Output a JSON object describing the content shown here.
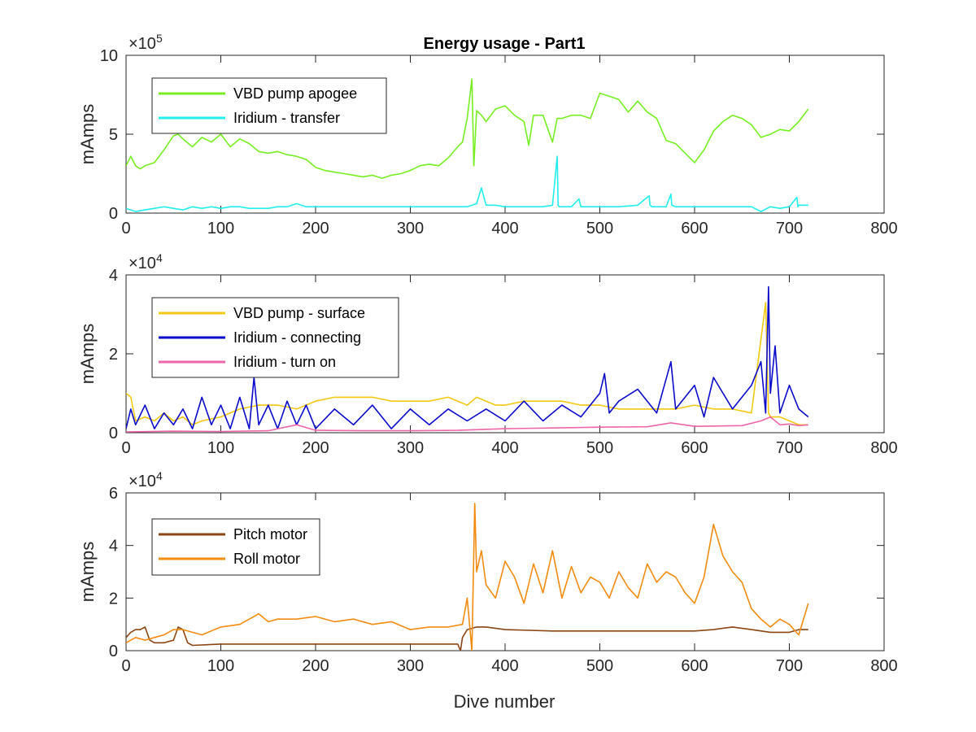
{
  "chart_data": {
    "type": "line",
    "title": "Energy usage - Part1",
    "xlabel": "Dive number",
    "xlim": [
      0,
      800
    ],
    "xticks": [
      0,
      100,
      200,
      300,
      400,
      500,
      600,
      700,
      800
    ],
    "grid": false,
    "panels": [
      {
        "ylabel": "mAmps",
        "exponent": "5",
        "ylim": [
          0,
          1000000
        ],
        "yticks": [
          0,
          500000,
          1000000
        ],
        "ytick_labels": [
          "0",
          "5",
          "10"
        ],
        "legend_position": "top-left",
        "series": [
          {
            "name": "VBD pump apogee",
            "color": "#77ee22",
            "x": [
              0,
              5,
              10,
              15,
              20,
              30,
              40,
              50,
              55,
              60,
              70,
              80,
              90,
              100,
              110,
              120,
              130,
              140,
              150,
              160,
              170,
              180,
              190,
              200,
              210,
              220,
              230,
              240,
              250,
              260,
              270,
              280,
              290,
              300,
              310,
              320,
              330,
              340,
              350,
              355,
              360,
              363,
              365,
              367,
              370,
              375,
              380,
              390,
              400,
              410,
              420,
              425,
              430,
              440,
              450,
              455,
              460,
              470,
              480,
              490,
              500,
              510,
              520,
              530,
              540,
              550,
              560,
              570,
              580,
              590,
              600,
              610,
              620,
              630,
              640,
              650,
              660,
              670,
              680,
              690,
              700,
              710,
              720
            ],
            "values": [
              300000,
              360000,
              300000,
              280000,
              300000,
              320000,
              400000,
              490000,
              500000,
              470000,
              420000,
              480000,
              450000,
              500000,
              420000,
              470000,
              440000,
              390000,
              380000,
              390000,
              370000,
              360000,
              340000,
              290000,
              270000,
              260000,
              250000,
              240000,
              230000,
              240000,
              220000,
              240000,
              250000,
              270000,
              300000,
              310000,
              300000,
              350000,
              420000,
              450000,
              600000,
              750000,
              850000,
              300000,
              650000,
              620000,
              580000,
              660000,
              680000,
              620000,
              580000,
              430000,
              620000,
              620000,
              450000,
              600000,
              600000,
              620000,
              620000,
              600000,
              760000,
              740000,
              720000,
              640000,
              710000,
              640000,
              600000,
              460000,
              440000,
              380000,
              320000,
              400000,
              520000,
              580000,
              620000,
              600000,
              560000,
              480000,
              500000,
              530000,
              520000,
              580000,
              660000
            ]
          },
          {
            "name": "Iridium - transfer",
            "color": "#22eeee",
            "x": [
              0,
              10,
              20,
              30,
              40,
              50,
              60,
              70,
              80,
              90,
              100,
              110,
              120,
              130,
              140,
              150,
              160,
              170,
              180,
              190,
              200,
              220,
              240,
              260,
              280,
              300,
              320,
              340,
              360,
              370,
              375,
              380,
              390,
              400,
              420,
              440,
              450,
              455,
              456,
              457,
              460,
              470,
              478,
              480,
              490,
              500,
              520,
              540,
              552,
              553,
              555,
              570,
              575,
              576,
              580,
              600,
              620,
              640,
              660,
              670,
              680,
              690,
              700,
              708,
              709,
              710,
              720
            ],
            "values": [
              30000,
              10000,
              20000,
              30000,
              40000,
              30000,
              20000,
              40000,
              30000,
              40000,
              30000,
              40000,
              40000,
              30000,
              30000,
              30000,
              40000,
              40000,
              60000,
              40000,
              40000,
              40000,
              40000,
              40000,
              40000,
              40000,
              40000,
              40000,
              40000,
              60000,
              160000,
              50000,
              50000,
              40000,
              40000,
              40000,
              50000,
              360000,
              50000,
              40000,
              40000,
              40000,
              90000,
              40000,
              40000,
              40000,
              40000,
              50000,
              110000,
              50000,
              40000,
              40000,
              120000,
              50000,
              40000,
              40000,
              40000,
              40000,
              40000,
              10000,
              40000,
              30000,
              40000,
              100000,
              40000,
              50000,
              50000
            ]
          }
        ]
      },
      {
        "ylabel": "mAmps",
        "exponent": "4",
        "ylim": [
          0,
          40000
        ],
        "yticks": [
          0,
          20000,
          40000
        ],
        "ytick_labels": [
          "0",
          "2",
          "4"
        ],
        "legend_position": "top-left",
        "series": [
          {
            "name": "VBD pump - surface",
            "color": "#f2c811",
            "x": [
              0,
              5,
              10,
              20,
              30,
              40,
              50,
              60,
              70,
              80,
              100,
              120,
              140,
              160,
              180,
              200,
              220,
              240,
              260,
              280,
              300,
              320,
              340,
              360,
              370,
              380,
              390,
              400,
              420,
              440,
              460,
              480,
              500,
              520,
              540,
              560,
              580,
              600,
              620,
              640,
              660,
              675,
              678,
              680,
              690,
              700,
              710,
              720
            ],
            "values": [
              10000,
              9000,
              3000,
              4000,
              3000,
              5000,
              3000,
              4000,
              2000,
              3000,
              4000,
              6000,
              7000,
              7000,
              6000,
              8000,
              9000,
              9000,
              9000,
              8000,
              8000,
              8000,
              9000,
              7000,
              9000,
              8000,
              7000,
              7000,
              8000,
              8000,
              8000,
              7000,
              7000,
              6000,
              6000,
              6000,
              6000,
              7000,
              6000,
              6000,
              5000,
              33000,
              5000,
              4000,
              4000,
              3000,
              2000,
              2000
            ]
          },
          {
            "name": "Iridium - connecting",
            "color": "#0a0acc",
            "x": [
              0,
              5,
              10,
              20,
              30,
              40,
              50,
              60,
              70,
              80,
              90,
              100,
              110,
              120,
              130,
              135,
              140,
              150,
              160,
              170,
              180,
              190,
              200,
              220,
              240,
              260,
              280,
              300,
              320,
              340,
              360,
              380,
              400,
              420,
              440,
              460,
              480,
              500,
              505,
              510,
              520,
              540,
              560,
              575,
              580,
              600,
              610,
              620,
              640,
              660,
              670,
              675,
              678,
              680,
              685,
              690,
              700,
              710,
              720
            ],
            "values": [
              1000,
              6000,
              2000,
              7000,
              1000,
              5000,
              2000,
              6000,
              1000,
              9000,
              2000,
              7000,
              1000,
              9000,
              1000,
              14000,
              2000,
              7000,
              1000,
              8000,
              2000,
              7000,
              1000,
              6000,
              2000,
              7000,
              1000,
              6000,
              2000,
              6000,
              3000,
              6000,
              3000,
              8000,
              3000,
              7000,
              4000,
              10000,
              15000,
              5000,
              8000,
              11000,
              5000,
              18000,
              6000,
              12000,
              4000,
              14000,
              6000,
              12000,
              18000,
              5000,
              37000,
              10000,
              22000,
              5000,
              12000,
              6000,
              4000
            ]
          },
          {
            "name": "Iridium - turn on",
            "color": "#ee66aa",
            "x": [
              0,
              50,
              100,
              150,
              180,
              200,
              250,
              300,
              350,
              400,
              450,
              500,
              550,
              575,
              600,
              650,
              670,
              680,
              690,
              700,
              710,
              720
            ],
            "values": [
              200,
              400,
              300,
              500,
              2000,
              600,
              500,
              500,
              600,
              1000,
              1200,
              1400,
              1500,
              2500,
              1600,
              1800,
              3000,
              4000,
              2000,
              2200,
              1800,
              2000
            ]
          }
        ]
      },
      {
        "ylabel": "mAmps",
        "exponent": "4",
        "ylim": [
          0,
          60000
        ],
        "yticks": [
          0,
          20000,
          40000,
          60000
        ],
        "ytick_labels": [
          "0",
          "2",
          "4",
          "6"
        ],
        "legend_position": "top-left",
        "series": [
          {
            "name": "Pitch motor",
            "color": "#8b4513",
            "x": [
              0,
              5,
              10,
              15,
              20,
              25,
              30,
              40,
              50,
              55,
              60,
              65,
              70,
              100,
              150,
              200,
              250,
              300,
              350,
              353,
              355,
              360,
              370,
              380,
              400,
              450,
              500,
              550,
              600,
              620,
              640,
              660,
              680,
              700,
              710,
              720
            ],
            "values": [
              5000,
              7000,
              8000,
              8000,
              9000,
              4000,
              3000,
              3000,
              4000,
              9000,
              8000,
              3000,
              2000,
              2500,
              2500,
              2500,
              2500,
              2500,
              2500,
              0,
              5000,
              8000,
              9000,
              9000,
              8000,
              7500,
              7500,
              7500,
              7500,
              8000,
              9000,
              8000,
              7000,
              7000,
              8000,
              8000
            ]
          },
          {
            "name": "Roll motor",
            "color": "#f38b10",
            "x": [
              0,
              10,
              20,
              30,
              40,
              50,
              60,
              70,
              80,
              100,
              120,
              140,
              150,
              160,
              180,
              200,
              220,
              240,
              260,
              280,
              300,
              320,
              340,
              355,
              360,
              365,
              368,
              370,
              375,
              380,
              390,
              400,
              410,
              420,
              430,
              440,
              450,
              460,
              470,
              480,
              490,
              500,
              510,
              520,
              530,
              540,
              550,
              560,
              570,
              580,
              590,
              600,
              610,
              620,
              630,
              640,
              650,
              660,
              670,
              680,
              690,
              700,
              710,
              720
            ],
            "values": [
              3000,
              5000,
              4000,
              5000,
              6000,
              8000,
              8000,
              7000,
              6000,
              9000,
              10000,
              14000,
              11000,
              12000,
              12000,
              13000,
              11000,
              12000,
              10000,
              11000,
              8000,
              9000,
              9000,
              10000,
              20000,
              0,
              56000,
              30000,
              38000,
              25000,
              20000,
              34000,
              28000,
              18000,
              33000,
              22000,
              38000,
              20000,
              32000,
              22000,
              28000,
              26000,
              20000,
              30000,
              24000,
              20000,
              33000,
              26000,
              30000,
              28000,
              22000,
              18000,
              28000,
              48000,
              36000,
              30000,
              26000,
              16000,
              12000,
              9000,
              12000,
              10000,
              6000,
              18000
            ]
          }
        ]
      }
    ]
  }
}
